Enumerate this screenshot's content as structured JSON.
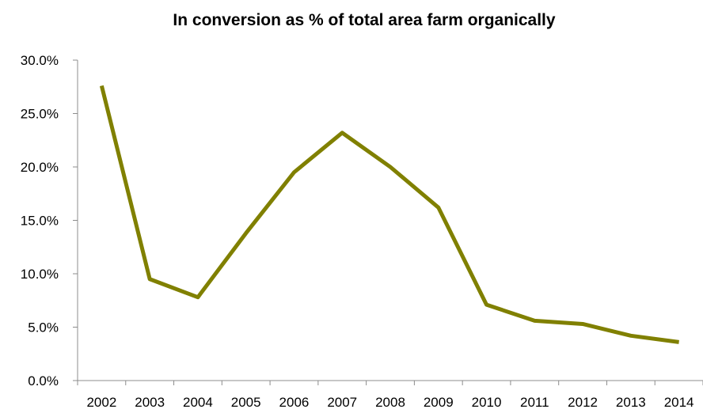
{
  "chart_data": {
    "type": "line",
    "title": "In conversion as % of total area farm organically",
    "xlabel": "",
    "ylabel": "",
    "categories": [
      "2002",
      "2003",
      "2004",
      "2005",
      "2006",
      "2007",
      "2008",
      "2009",
      "2010",
      "2011",
      "2012",
      "2013",
      "2014"
    ],
    "series": [
      {
        "values": [
          27.6,
          9.5,
          7.8,
          13.8,
          19.5,
          23.2,
          20.0,
          16.2,
          7.1,
          5.6,
          5.3,
          4.2,
          3.6
        ]
      }
    ],
    "ylim": [
      0,
      30
    ],
    "yticks": [
      0,
      5,
      10,
      15,
      20,
      25,
      30
    ],
    "ytick_labels": [
      "0.0%",
      "5.0%",
      "10.0%",
      "15.0%",
      "20.0%",
      "25.0%",
      "30.0%"
    ],
    "grid": false,
    "legend": "none",
    "line_color": "#808000"
  }
}
